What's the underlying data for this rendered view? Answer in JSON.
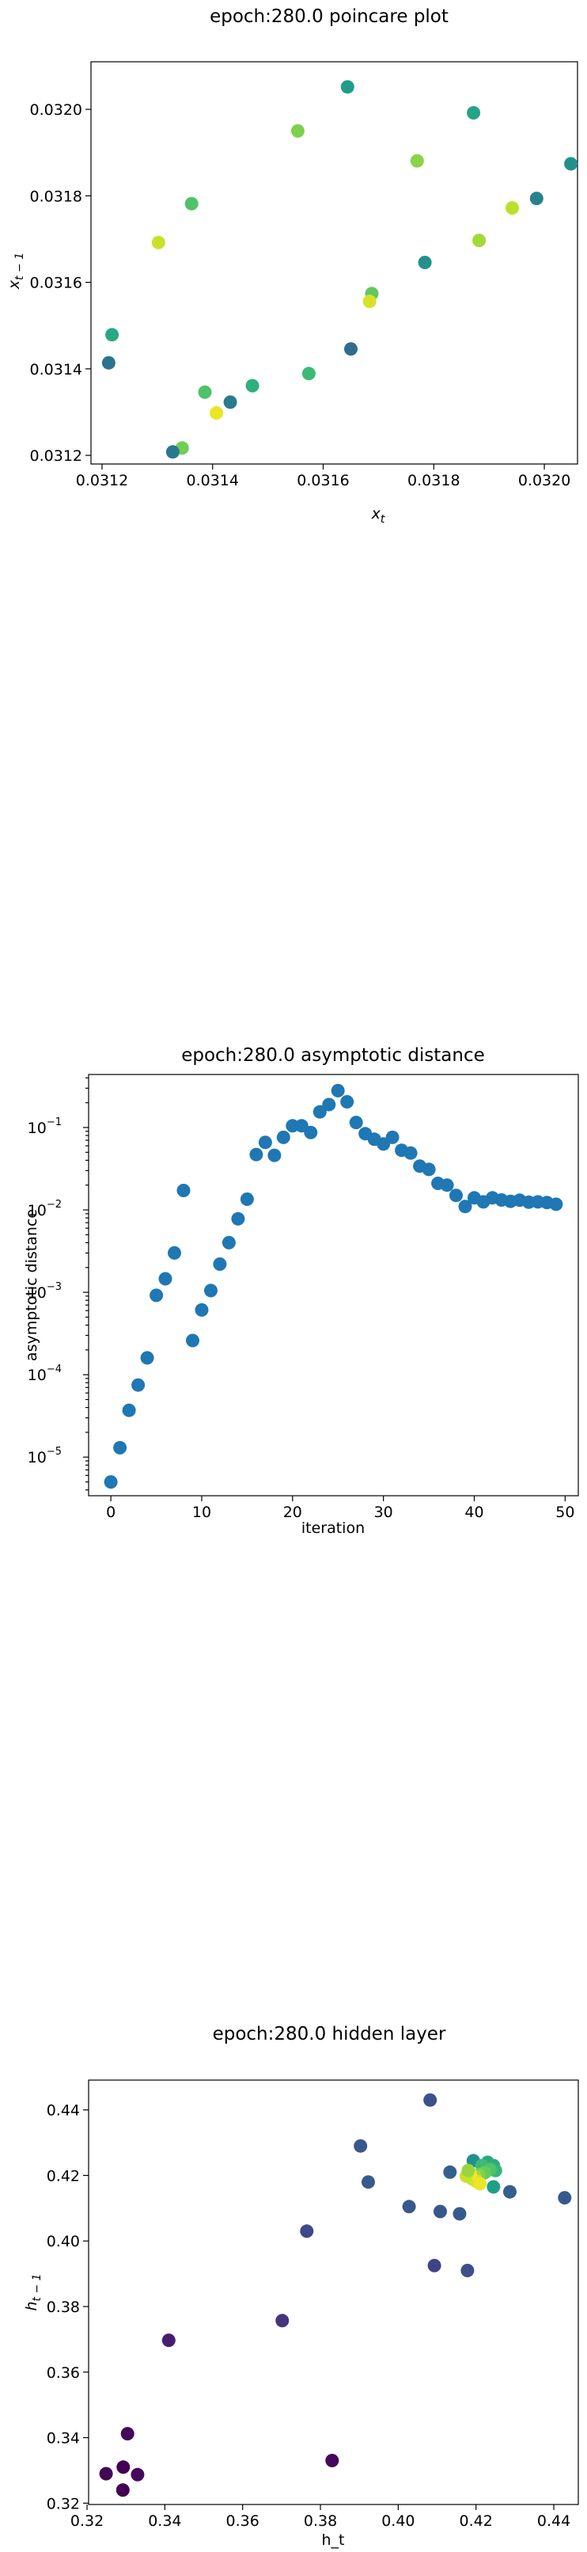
{
  "chart_data": [
    {
      "type": "scatter",
      "title": "epoch:280.0 poincare plot",
      "xlabel": "x_t",
      "ylabel": "x_{t-1}",
      "xscale": "linear",
      "yscale": "linear",
      "xlim": [
        0.03118,
        0.03206
      ],
      "ylim": [
        0.03118,
        0.03211
      ],
      "xticks": [
        0.0312,
        0.0314,
        0.0316,
        0.0318,
        0.032
      ],
      "xtick_labels": [
        "0.0312",
        "0.0314",
        "0.0316",
        "0.0318",
        "0.0320"
      ],
      "yticks": [
        0.0312,
        0.0314,
        0.0316,
        0.0318,
        0.032
      ],
      "ytick_labels": [
        "0.0312",
        "0.0314",
        "0.0316",
        "0.0318",
        "0.0320"
      ],
      "grid": false,
      "color_map": "viridis",
      "points": [
        {
          "x": 0.031644,
          "y": 0.032052,
          "c": 0.55
        },
        {
          "x": 0.031554,
          "y": 0.03195,
          "c": 0.8
        },
        {
          "x": 0.031872,
          "y": 0.031992,
          "c": 0.58
        },
        {
          "x": 0.031362,
          "y": 0.031782,
          "c": 0.72
        },
        {
          "x": 0.031302,
          "y": 0.031692,
          "c": 0.92
        },
        {
          "x": 0.03177,
          "y": 0.031881,
          "c": 0.82
        },
        {
          "x": 0.032048,
          "y": 0.031874,
          "c": 0.5
        },
        {
          "x": 0.031986,
          "y": 0.031794,
          "c": 0.45
        },
        {
          "x": 0.031942,
          "y": 0.031772,
          "c": 0.9
        },
        {
          "x": 0.031882,
          "y": 0.031697,
          "c": 0.86
        },
        {
          "x": 0.031784,
          "y": 0.031646,
          "c": 0.5
        },
        {
          "x": 0.031688,
          "y": 0.031574,
          "c": 0.75
        },
        {
          "x": 0.031684,
          "y": 0.031556,
          "c": 0.94
        },
        {
          "x": 0.031218,
          "y": 0.031479,
          "c": 0.6
        },
        {
          "x": 0.031212,
          "y": 0.031414,
          "c": 0.38
        },
        {
          "x": 0.03165,
          "y": 0.031446,
          "c": 0.35
        },
        {
          "x": 0.031574,
          "y": 0.031389,
          "c": 0.68
        },
        {
          "x": 0.031472,
          "y": 0.031361,
          "c": 0.63
        },
        {
          "x": 0.031386,
          "y": 0.031346,
          "c": 0.72
        },
        {
          "x": 0.031432,
          "y": 0.031323,
          "c": 0.42
        },
        {
          "x": 0.031407,
          "y": 0.031298,
          "c": 0.97
        },
        {
          "x": 0.031345,
          "y": 0.031217,
          "c": 0.78
        },
        {
          "x": 0.031328,
          "y": 0.031208,
          "c": 0.4
        }
      ]
    },
    {
      "type": "scatter",
      "title": "epoch:280.0 asymptotic distance",
      "xlabel": "iteration",
      "ylabel": "asymptotic distance",
      "xscale": "linear",
      "yscale": "log",
      "xlim": [
        -2.45,
        51.45
      ],
      "ylim": [
        3.4e-06,
        0.44
      ],
      "xticks": [
        0,
        10,
        20,
        30,
        40,
        50
      ],
      "xtick_labels": [
        "0",
        "10",
        "20",
        "30",
        "40",
        "50"
      ],
      "yticks": [
        1e-05,
        0.0001,
        0.001,
        0.01,
        0.1
      ],
      "ytick_mantissa": [
        "10",
        "10",
        "10",
        "10",
        "10"
      ],
      "ytick_exponents": [
        "−5",
        "−4",
        "−3",
        "−2",
        "−1"
      ],
      "grid": false,
      "color": "#1f77b4",
      "x": [
        0,
        1,
        2,
        3,
        4,
        5,
        6,
        7,
        8,
        9,
        10,
        11,
        12,
        13,
        14,
        15,
        16,
        17,
        18,
        19,
        20,
        21,
        22,
        23,
        24,
        25,
        26,
        27,
        28,
        29,
        30,
        31,
        32,
        33,
        34,
        35,
        36,
        37,
        38,
        39,
        40,
        41,
        42,
        43,
        44,
        45,
        46,
        47,
        48,
        49
      ],
      "y": [
        5e-06,
        1.3e-05,
        3.7e-05,
        7.5e-05,
        0.00016,
        0.00092,
        0.00146,
        0.003,
        0.0172,
        0.00026,
        0.00061,
        0.00105,
        0.0022,
        0.004,
        0.0078,
        0.0135,
        0.047,
        0.066,
        0.046,
        0.076,
        0.105,
        0.105,
        0.087,
        0.155,
        0.19,
        0.28,
        0.205,
        0.115,
        0.084,
        0.072,
        0.063,
        0.076,
        0.053,
        0.049,
        0.034,
        0.031,
        0.021,
        0.02,
        0.015,
        0.011,
        0.014,
        0.0125,
        0.014,
        0.0132,
        0.0127,
        0.0131,
        0.0124,
        0.0125,
        0.0123,
        0.0117
      ]
    },
    {
      "type": "scatter",
      "title": "epoch:280.0 hidden layer",
      "xlabel": "h_t",
      "ylabel": "h_{t-1}",
      "xscale": "linear",
      "yscale": "linear",
      "xlim": [
        0.3204,
        0.4463
      ],
      "ylim": [
        0.3196,
        0.4491
      ],
      "xticks": [
        0.32,
        0.34,
        0.36,
        0.38,
        0.4,
        0.42,
        0.44
      ],
      "xtick_labels": [
        "0.32",
        "0.34",
        "0.36",
        "0.38",
        "0.40",
        "0.42",
        "0.44"
      ],
      "yticks": [
        0.32,
        0.34,
        0.36,
        0.38,
        0.4,
        0.42,
        0.44
      ],
      "ytick_labels": [
        "0.32",
        "0.34",
        "0.36",
        "0.38",
        "0.40",
        "0.42",
        "0.44"
      ],
      "grid": false,
      "color_map": "viridis",
      "points": [
        {
          "x": 0.4082,
          "y": 0.443,
          "c": 0.25
        },
        {
          "x": 0.3903,
          "y": 0.429,
          "c": 0.27
        },
        {
          "x": 0.4133,
          "y": 0.421,
          "c": 0.3
        },
        {
          "x": 0.4193,
          "y": 0.4245,
          "c": 0.5
        },
        {
          "x": 0.4428,
          "y": 0.4132,
          "c": 0.28
        },
        {
          "x": 0.3923,
          "y": 0.418,
          "c": 0.28
        },
        {
          "x": 0.4287,
          "y": 0.415,
          "c": 0.3
        },
        {
          "x": 0.4028,
          "y": 0.4105,
          "c": 0.28
        },
        {
          "x": 0.4108,
          "y": 0.409,
          "c": 0.27
        },
        {
          "x": 0.4158,
          "y": 0.4083,
          "c": 0.28
        },
        {
          "x": 0.3765,
          "y": 0.403,
          "c": 0.22
        },
        {
          "x": 0.4093,
          "y": 0.3925,
          "c": 0.2
        },
        {
          "x": 0.4178,
          "y": 0.391,
          "c": 0.24
        },
        {
          "x": 0.3702,
          "y": 0.3757,
          "c": 0.15
        },
        {
          "x": 0.341,
          "y": 0.3697,
          "c": 0.08
        },
        {
          "x": 0.3304,
          "y": 0.3412,
          "c": 0.02
        },
        {
          "x": 0.383,
          "y": 0.333,
          "c": 0.02
        },
        {
          "x": 0.3293,
          "y": 0.331,
          "c": 0.0
        },
        {
          "x": 0.3249,
          "y": 0.329,
          "c": 0.01
        },
        {
          "x": 0.333,
          "y": 0.3287,
          "c": 0.02
        },
        {
          "x": 0.3292,
          "y": 0.324,
          "c": 0.0
        },
        {
          "x": 0.423,
          "y": 0.424,
          "c": 0.6
        },
        {
          "x": 0.4245,
          "y": 0.423,
          "c": 0.62
        },
        {
          "x": 0.425,
          "y": 0.4215,
          "c": 0.66
        },
        {
          "x": 0.4215,
          "y": 0.423,
          "c": 0.68
        },
        {
          "x": 0.4236,
          "y": 0.4218,
          "c": 0.72
        },
        {
          "x": 0.4222,
          "y": 0.4208,
          "c": 0.76
        },
        {
          "x": 0.4208,
          "y": 0.4202,
          "c": 0.8
        },
        {
          "x": 0.4198,
          "y": 0.4196,
          "c": 0.86
        },
        {
          "x": 0.419,
          "y": 0.419,
          "c": 0.9
        },
        {
          "x": 0.42,
          "y": 0.4183,
          "c": 0.94
        },
        {
          "x": 0.421,
          "y": 0.4175,
          "c": 0.97
        },
        {
          "x": 0.4185,
          "y": 0.4205,
          "c": 0.99
        },
        {
          "x": 0.4175,
          "y": 0.4198,
          "c": 0.92
        },
        {
          "x": 0.418,
          "y": 0.4215,
          "c": 0.84
        },
        {
          "x": 0.4245,
          "y": 0.4165,
          "c": 0.56
        }
      ]
    }
  ]
}
